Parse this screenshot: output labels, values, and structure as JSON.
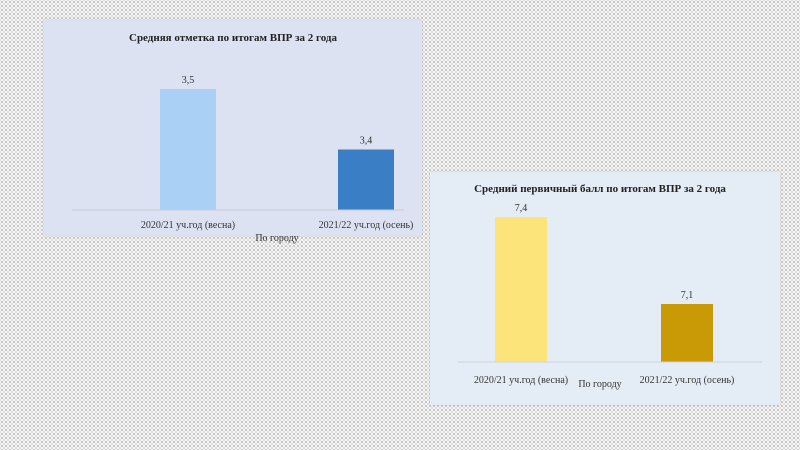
{
  "chart_data": [
    {
      "type": "bar",
      "title": "Средняя отметка по итогам ВПР за 2 года",
      "categories": [
        "2020/21 уч.год (весна)",
        "2021/22 уч.год (осень)"
      ],
      "series": [
        {
          "name": "По городу",
          "values": [
            3.5,
            3.4
          ],
          "labels": [
            "3,5",
            "3,4"
          ]
        }
      ],
      "xlabel": "По городу",
      "ylabel": "",
      "ylim": [
        3.3,
        3.5
      ],
      "grid": false,
      "legend": "none",
      "colors": [
        "#abd0f5",
        "#3a7fc5"
      ]
    },
    {
      "type": "bar",
      "title": "Средний первичный балл по итогам ВПР за 2 года",
      "categories": [
        "2020/21 уч.год (весна)",
        "2021/22 уч.год (осень)"
      ],
      "series": [
        {
          "name": "По городу",
          "values": [
            7.4,
            7.1
          ],
          "labels": [
            "7,4",
            "7,1"
          ]
        }
      ],
      "xlabel": "По городу",
      "ylabel": "",
      "ylim": [
        6.9,
        7.4
      ],
      "grid": false,
      "legend": "none",
      "colors": [
        "#fde47a",
        "#c99a06"
      ]
    }
  ]
}
